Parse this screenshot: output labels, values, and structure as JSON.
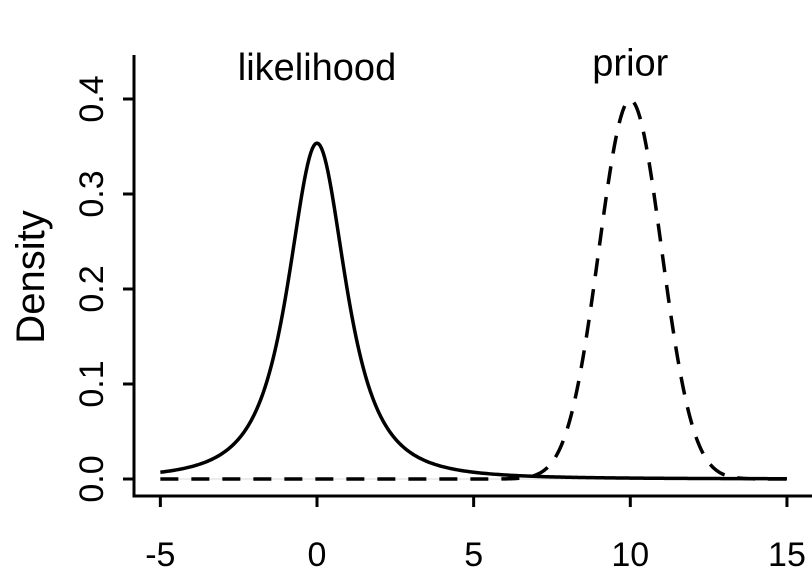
{
  "chart_data": {
    "type": "line",
    "title": "",
    "xlabel": "",
    "ylabel": "Density",
    "xlim": [
      -5,
      15
    ],
    "ylim": [
      0,
      0.4
    ],
    "x_ticks": [
      -5,
      0,
      5,
      10,
      15
    ],
    "x_tick_labels": [
      "-5",
      "0",
      "5",
      "10",
      "15"
    ],
    "y_ticks": [
      0,
      0.1,
      0.2,
      0.3,
      0.4
    ],
    "y_tick_labels": [
      "0.0",
      "0.1",
      "0.2",
      "0.3",
      "0.4"
    ],
    "grid": false,
    "reference_line": {
      "y": 0,
      "color": "#d9d9d9"
    },
    "series": [
      {
        "name": "likelihood",
        "style": "solid",
        "distribution": "student-t",
        "df": 2,
        "location": 0,
        "scale": 1,
        "x_range": [
          -5,
          15
        ],
        "peak": 0.354
      },
      {
        "name": "prior",
        "style": "dashed",
        "distribution": "normal",
        "mean": 10,
        "sd": 1,
        "x_range": [
          -5,
          15
        ],
        "peak": 0.399
      }
    ],
    "annotations": [
      {
        "text": "likelihood",
        "x": 0,
        "y": 0.42
      },
      {
        "text": "prior",
        "x": 10,
        "y": 0.425
      }
    ]
  }
}
